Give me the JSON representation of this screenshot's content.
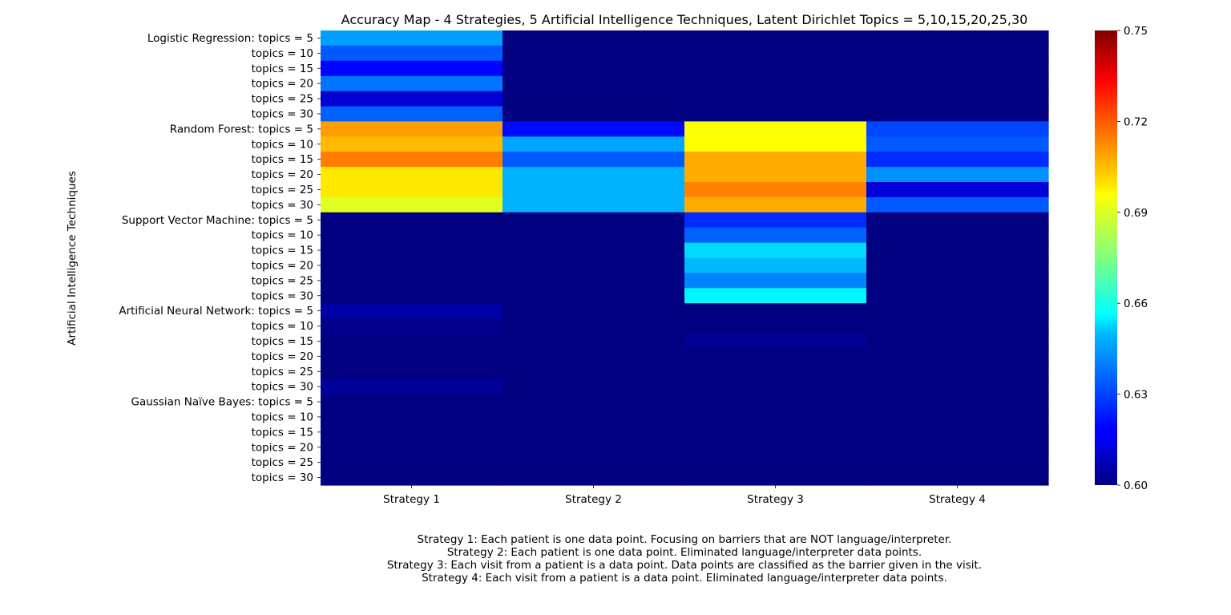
{
  "chart_data": {
    "type": "heatmap",
    "title": "Accuracy Map - 4 Strategies, 5 Artificial Intelligence Techniques, Latent Dirichlet Topics = 5,10,15,20,25,30",
    "xlabel": "",
    "ylabel": "Artificial Intelligence Techniques",
    "x_categories": [
      "Strategy 1",
      "Strategy 2",
      "Strategy 3",
      "Strategy 4"
    ],
    "y_categories": [
      "Logistic Regression:  topics = 5",
      "topics = 10",
      "topics = 15",
      "topics = 20",
      "topics = 25",
      "topics = 30",
      "Random Forest:  topics = 5",
      "topics = 10",
      "topics = 15",
      "topics = 20",
      "topics = 25",
      "topics = 30",
      "Support Vector Machine:  topics = 5",
      "topics = 10",
      "topics = 15",
      "topics = 20",
      "topics = 25",
      "topics = 30",
      "Artificial Neural Network:  topics = 5",
      "topics = 10",
      "topics = 15",
      "topics = 20",
      "topics = 25",
      "topics = 30",
      "Gaussian Naïve Bayes:  topics = 5",
      "topics = 10",
      "topics = 15",
      "topics = 20",
      "topics = 25",
      "topics = 30"
    ],
    "values": [
      [
        0.642,
        0.4,
        0.4,
        0.4
      ],
      [
        0.632,
        0.4,
        0.4,
        0.4
      ],
      [
        0.619,
        0.4,
        0.4,
        0.4
      ],
      [
        0.636,
        0.4,
        0.4,
        0.4
      ],
      [
        0.612,
        0.4,
        0.4,
        0.4
      ],
      [
        0.633,
        0.4,
        0.4,
        0.4
      ],
      [
        0.708,
        0.62,
        0.693,
        0.629
      ],
      [
        0.704,
        0.643,
        0.694,
        0.632
      ],
      [
        0.713,
        0.632,
        0.706,
        0.625
      ],
      [
        0.697,
        0.645,
        0.706,
        0.64
      ],
      [
        0.697,
        0.645,
        0.712,
        0.613
      ],
      [
        0.689,
        0.645,
        0.706,
        0.632
      ],
      [
        0.4,
        0.4,
        0.625,
        0.4
      ],
      [
        0.4,
        0.4,
        0.633,
        0.4
      ],
      [
        0.4,
        0.4,
        0.651,
        0.4
      ],
      [
        0.4,
        0.4,
        0.646,
        0.4
      ],
      [
        0.4,
        0.4,
        0.638,
        0.4
      ],
      [
        0.4,
        0.4,
        0.655,
        0.4
      ],
      [
        0.606,
        0.4,
        0.4,
        0.4
      ],
      [
        0.602,
        0.4,
        0.4,
        0.4
      ],
      [
        0.4,
        0.4,
        0.603,
        0.4
      ],
      [
        0.4,
        0.4,
        0.4,
        0.4
      ],
      [
        0.4,
        0.4,
        0.4,
        0.4
      ],
      [
        0.604,
        0.4,
        0.4,
        0.4
      ],
      [
        0.4,
        0.4,
        0.4,
        0.4
      ],
      [
        0.4,
        0.4,
        0.4,
        0.4
      ],
      [
        0.4,
        0.4,
        0.4,
        0.4
      ],
      [
        0.4,
        0.4,
        0.4,
        0.4
      ],
      [
        0.4,
        0.4,
        0.4,
        0.4
      ],
      [
        0.4,
        0.4,
        0.4,
        0.4
      ]
    ],
    "colormap": "jet",
    "vmin": 0.6,
    "vmax": 0.75,
    "colorbar_ticks": [
      "0.60",
      "0.63",
      "0.66",
      "0.69",
      "0.72",
      "0.75"
    ],
    "grid": false,
    "legend": "colorbar-right"
  },
  "caption": [
    "Strategy 1:  Each patient is one data point.  Focusing on barriers that are NOT language/interpreter.",
    "Strategy 2:  Each patient is one data point.  Eliminated language/interpreter data points.",
    "Strategy 3:  Each visit from a patient is a data point.  Data points are classified as the barrier given in the visit.",
    "Strategy 4:  Each visit from a patient is a data point.  Eliminated language/interpreter data points."
  ]
}
